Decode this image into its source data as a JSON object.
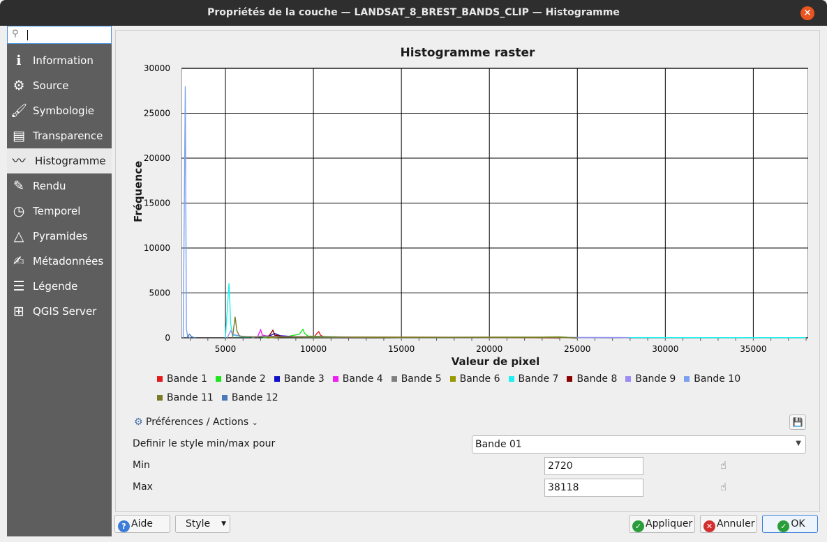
{
  "window": {
    "title": "Propriétés de la couche — LANDSAT_8_BREST_BANDS_CLIP — Histogramme"
  },
  "sidebar": {
    "search_value": "",
    "items": [
      {
        "label": "Information",
        "icon": "info-icon",
        "glyph": "ℹ"
      },
      {
        "label": "Source",
        "icon": "wrench-icon",
        "glyph": "⚙"
      },
      {
        "label": "Symbologie",
        "icon": "paintbrush-icon",
        "glyph": "🖌"
      },
      {
        "label": "Transparence",
        "icon": "transparency-icon",
        "glyph": "▤"
      },
      {
        "label": "Histogramme",
        "icon": "histogram-icon",
        "glyph": "〰"
      },
      {
        "label": "Rendu",
        "icon": "brush-icon",
        "glyph": "✎"
      },
      {
        "label": "Temporel",
        "icon": "clock-icon",
        "glyph": "◷"
      },
      {
        "label": "Pyramides",
        "icon": "pyramid-icon",
        "glyph": "△"
      },
      {
        "label": "Métadonnées",
        "icon": "metadata-icon",
        "glyph": "✍"
      },
      {
        "label": "Légende",
        "icon": "legend-icon",
        "glyph": "☰"
      },
      {
        "label": "QGIS Server",
        "icon": "server-icon",
        "glyph": "⊞"
      }
    ],
    "active_index": 4
  },
  "chart_data": {
    "type": "line",
    "title": "Histogramme raster",
    "xlabel": "Valeur de pixel",
    "ylabel": "Fréquence",
    "xlim": [
      2500,
      38118
    ],
    "ylim": [
      0,
      30000
    ],
    "xticks": [
      5000,
      10000,
      15000,
      20000,
      25000,
      30000,
      35000
    ],
    "yticks": [
      0,
      5000,
      10000,
      15000,
      20000,
      25000,
      30000
    ],
    "grid": true,
    "legend_position": "bottom",
    "series": [
      {
        "name": "Bande 1",
        "color": "#e41a1c",
        "points": [
          [
            10000,
            0
          ],
          [
            10200,
            500
          ],
          [
            10300,
            700
          ],
          [
            10400,
            300
          ],
          [
            10600,
            100
          ],
          [
            13000,
            80
          ],
          [
            18000,
            60
          ],
          [
            24000,
            40
          ],
          [
            25000,
            0
          ]
        ]
      },
      {
        "name": "Bande 2",
        "color": "#1ee61e",
        "points": [
          [
            7000,
            0
          ],
          [
            8500,
            150
          ],
          [
            9200,
            400
          ],
          [
            9400,
            950
          ],
          [
            9500,
            500
          ],
          [
            9700,
            200
          ],
          [
            12000,
            80
          ],
          [
            18000,
            60
          ],
          [
            23000,
            100
          ],
          [
            24000,
            120
          ],
          [
            25000,
            0
          ]
        ]
      },
      {
        "name": "Bande 3",
        "color": "#1010c8",
        "points": [
          [
            7000,
            0
          ],
          [
            7600,
            300
          ],
          [
            7800,
            500
          ],
          [
            8100,
            250
          ],
          [
            8800,
            150
          ],
          [
            12000,
            80
          ],
          [
            18000,
            50
          ],
          [
            24000,
            40
          ],
          [
            25000,
            0
          ]
        ]
      },
      {
        "name": "Bande 4",
        "color": "#f01ef0",
        "points": [
          [
            6800,
            0
          ],
          [
            7000,
            900
          ],
          [
            7100,
            300
          ],
          [
            7400,
            200
          ],
          [
            9000,
            100
          ],
          [
            14000,
            60
          ],
          [
            22000,
            40
          ],
          [
            24000,
            0
          ]
        ]
      },
      {
        "name": "Bande 5",
        "color": "#808080",
        "points": [
          [
            6500,
            0
          ],
          [
            7000,
            200
          ],
          [
            8000,
            150
          ],
          [
            12000,
            80
          ],
          [
            18000,
            60
          ],
          [
            24000,
            40
          ],
          [
            27000,
            0
          ]
        ]
      },
      {
        "name": "Bande 6",
        "color": "#9a9a00",
        "points": [
          [
            7500,
            0
          ],
          [
            8500,
            150
          ],
          [
            12000,
            100
          ],
          [
            18000,
            80
          ],
          [
            23000,
            100
          ],
          [
            24000,
            120
          ],
          [
            25000,
            0
          ]
        ]
      },
      {
        "name": "Bande 7",
        "color": "#1ef0f0",
        "points": [
          [
            5000,
            0
          ],
          [
            5200,
            6100
          ],
          [
            5300,
            1500
          ],
          [
            5400,
            300
          ],
          [
            6000,
            100
          ],
          [
            15000,
            50
          ],
          [
            27000,
            30
          ],
          [
            38000,
            20
          ]
        ]
      },
      {
        "name": "Bande 8",
        "color": "#8b0000",
        "points": [
          [
            7400,
            0
          ],
          [
            7700,
            850
          ],
          [
            7800,
            300
          ],
          [
            8300,
            150
          ],
          [
            12000,
            80
          ],
          [
            20000,
            50
          ],
          [
            24000,
            0
          ]
        ]
      },
      {
        "name": "Bande 9",
        "color": "#9a8cf0",
        "points": [
          [
            5100,
            0
          ],
          [
            5300,
            800
          ],
          [
            5400,
            400
          ],
          [
            6000,
            150
          ],
          [
            15000,
            50
          ],
          [
            25000,
            40
          ],
          [
            27500,
            30
          ],
          [
            28000,
            0
          ]
        ]
      },
      {
        "name": "Bande 10",
        "color": "#7ba0f0",
        "points": [
          [
            2600,
            0
          ],
          [
            2720,
            28000
          ],
          [
            2780,
            1000
          ],
          [
            2850,
            200
          ],
          [
            3000,
            0
          ]
        ]
      },
      {
        "name": "Bande 11",
        "color": "#7a7a28",
        "points": [
          [
            5400,
            0
          ],
          [
            5550,
            2350
          ],
          [
            5650,
            800
          ],
          [
            5800,
            200
          ],
          [
            6500,
            100
          ],
          [
            15000,
            50
          ],
          [
            24000,
            30
          ],
          [
            25000,
            0
          ]
        ]
      },
      {
        "name": "Bande 12",
        "color": "#4a78b8",
        "points": [
          [
            2800,
            0
          ],
          [
            2950,
            400
          ],
          [
            3100,
            100
          ],
          [
            3300,
            0
          ]
        ]
      }
    ]
  },
  "prefs": {
    "label": "Préférences / Actions",
    "arrow": "⌄"
  },
  "form": {
    "minmax_label": "Definir le style min/max pour",
    "band_selected": "Bande 01",
    "min_label": "Min",
    "min_value": "2720",
    "max_label": "Max",
    "max_value": "38118"
  },
  "buttons": {
    "help": "Aide",
    "style": "Style",
    "apply": "Appliquer",
    "cancel": "Annuler",
    "ok": "OK"
  }
}
